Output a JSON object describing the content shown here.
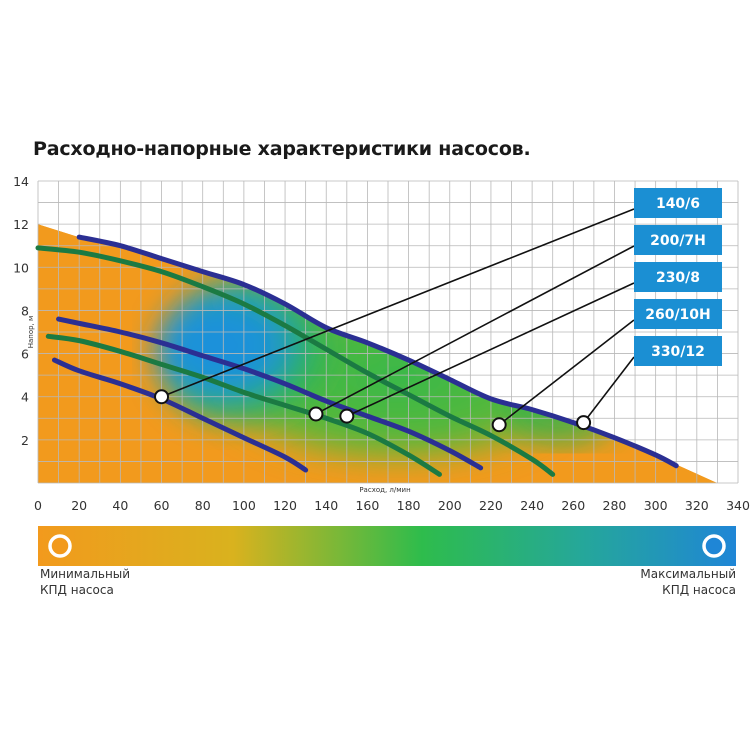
{
  "title": "Расходно-напорные характеристики насосов.",
  "chart_data": {
    "type": "line",
    "title": "Расходно-напорные характеристики насосов.",
    "xlabel": "Расход, л/мин",
    "ylabel": "Напор, м",
    "xlim": [
      0,
      340
    ],
    "ylim": [
      0,
      14
    ],
    "x_ticks": [
      "0",
      "20",
      "40",
      "60",
      "80",
      "100",
      "120",
      "140",
      "160",
      "180",
      "200",
      "220",
      "240",
      "260",
      "280",
      "300",
      "320",
      "340"
    ],
    "y_ticks": [
      "2",
      "4",
      "6",
      "8",
      "10",
      "12",
      "14"
    ],
    "grid": true,
    "background": "efficiency heatmap (orange = minimal, green, blue = maximal)",
    "series": [
      {
        "name": "140/6",
        "color": "#2b2f93",
        "x": [
          8,
          20,
          40,
          60,
          80,
          100,
          120,
          130
        ],
        "y": [
          5.7,
          5.2,
          4.6,
          3.9,
          3.0,
          2.1,
          1.2,
          0.6
        ],
        "marker": [
          60,
          4.0
        ]
      },
      {
        "name": "200/7Н",
        "color": "#1b7a43",
        "x": [
          5,
          20,
          40,
          60,
          80,
          100,
          120,
          140,
          160,
          180,
          195
        ],
        "y": [
          6.8,
          6.6,
          6.1,
          5.5,
          4.9,
          4.2,
          3.6,
          3.0,
          2.3,
          1.3,
          0.4
        ],
        "marker": [
          135,
          3.2
        ]
      },
      {
        "name": "230/8",
        "color": "#2b2f93",
        "x": [
          10,
          20,
          40,
          60,
          80,
          100,
          120,
          140,
          160,
          180,
          200,
          215
        ],
        "y": [
          7.6,
          7.4,
          7.0,
          6.5,
          5.9,
          5.3,
          4.6,
          3.8,
          3.1,
          2.4,
          1.5,
          0.7
        ],
        "marker": [
          150,
          3.1
        ]
      },
      {
        "name": "260/10Н",
        "color": "#1b7a43",
        "x": [
          0,
          20,
          40,
          60,
          80,
          100,
          120,
          140,
          160,
          180,
          200,
          220,
          240,
          250
        ],
        "y": [
          10.9,
          10.7,
          10.3,
          9.8,
          9.1,
          8.3,
          7.3,
          6.2,
          5.1,
          4.1,
          3.1,
          2.2,
          1.1,
          0.4
        ],
        "marker": [
          224,
          2.7
        ]
      },
      {
        "name": "330/12",
        "color": "#2b2f93",
        "x": [
          20,
          40,
          60,
          80,
          100,
          120,
          140,
          160,
          180,
          200,
          220,
          240,
          260,
          280,
          300,
          310
        ],
        "y": [
          11.4,
          11.0,
          10.4,
          9.8,
          9.2,
          8.3,
          7.2,
          6.5,
          5.7,
          4.8,
          3.9,
          3.4,
          2.8,
          2.1,
          1.3,
          0.8
        ],
        "marker": [
          265,
          2.8
        ]
      }
    ]
  },
  "efficiency_scale": {
    "min_label": "Минимальный\nКПД насоса",
    "max_label": "Максимальный\nКПД насоса",
    "min_color": "#f0911f",
    "mid_color": "#2bb24c",
    "max_color": "#1e88d8"
  }
}
